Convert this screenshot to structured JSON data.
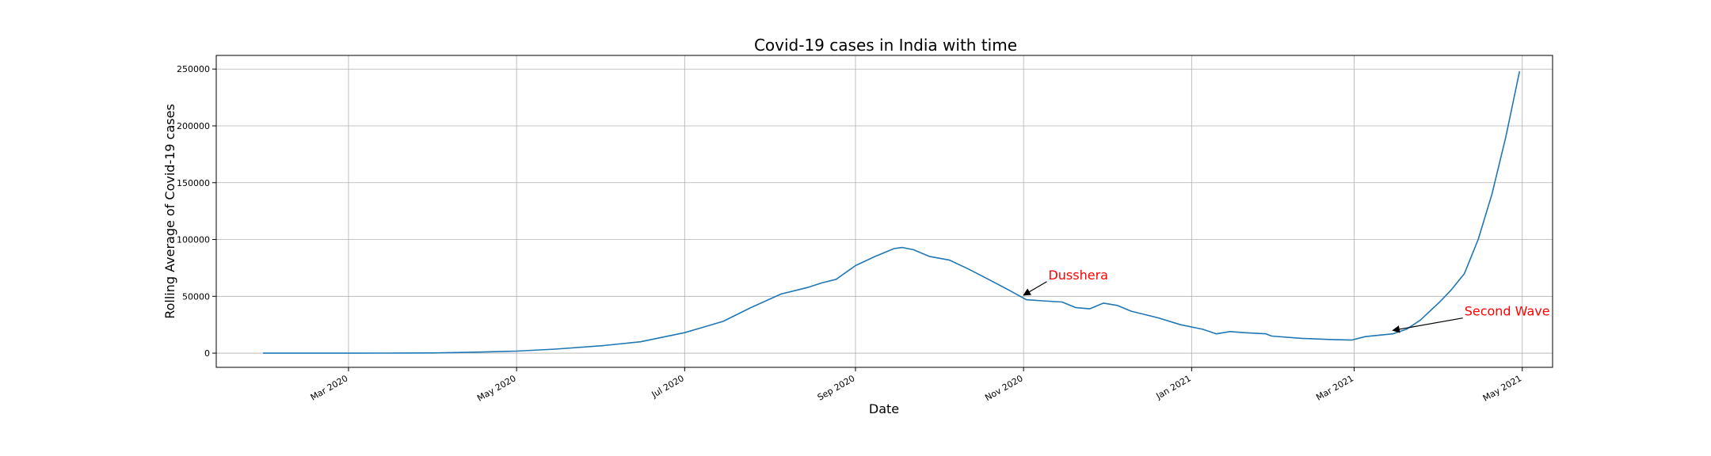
{
  "chart_data": {
    "type": "line",
    "title": "Covid-19 cases in India with time",
    "xlabel": "Date",
    "ylabel": "Rolling Average of Covid-19 cases",
    "x_type": "date",
    "xlim": [
      "2020-01-13",
      "2021-05-12"
    ],
    "ylim": [
      -12500,
      262000
    ],
    "grid": true,
    "x_ticks": [
      {
        "date": "2020-03-01",
        "label": "Mar 2020"
      },
      {
        "date": "2020-05-01",
        "label": "May 2020"
      },
      {
        "date": "2020-07-01",
        "label": "Jul 2020"
      },
      {
        "date": "2020-09-01",
        "label": "Sep 2020"
      },
      {
        "date": "2020-11-01",
        "label": "Nov 2020"
      },
      {
        "date": "2021-01-01",
        "label": "Jan 2021"
      },
      {
        "date": "2021-03-01",
        "label": "Mar 2021"
      },
      {
        "date": "2021-05-01",
        "label": "May 2021"
      }
    ],
    "y_ticks": [
      0,
      50000,
      100000,
      150000,
      200000,
      250000
    ],
    "line_color": "#1f77b4",
    "series": [
      {
        "points": [
          [
            "2020-01-30",
            0
          ],
          [
            "2020-02-15",
            0
          ],
          [
            "2020-03-01",
            0
          ],
          [
            "2020-03-15",
            10
          ],
          [
            "2020-04-01",
            200
          ],
          [
            "2020-04-15",
            800
          ],
          [
            "2020-05-01",
            1800
          ],
          [
            "2020-05-15",
            3500
          ],
          [
            "2020-06-01",
            6500
          ],
          [
            "2020-06-15",
            10000
          ],
          [
            "2020-07-01",
            18000
          ],
          [
            "2020-07-15",
            28000
          ],
          [
            "2020-07-25",
            40000
          ],
          [
            "2020-08-05",
            52000
          ],
          [
            "2020-08-15",
            58000
          ],
          [
            "2020-08-20",
            62000
          ],
          [
            "2020-08-25",
            65000
          ],
          [
            "2020-09-01",
            77000
          ],
          [
            "2020-09-08",
            85000
          ],
          [
            "2020-09-15",
            92000
          ],
          [
            "2020-09-18",
            93000
          ],
          [
            "2020-09-22",
            91000
          ],
          [
            "2020-09-28",
            85000
          ],
          [
            "2020-10-05",
            82000
          ],
          [
            "2020-10-12",
            74000
          ],
          [
            "2020-10-20",
            64000
          ],
          [
            "2020-10-27",
            55000
          ],
          [
            "2020-11-02",
            47000
          ],
          [
            "2020-11-08",
            46000
          ],
          [
            "2020-11-15",
            45000
          ],
          [
            "2020-11-20",
            40000
          ],
          [
            "2020-11-25",
            39000
          ],
          [
            "2020-11-30",
            44000
          ],
          [
            "2020-12-05",
            42000
          ],
          [
            "2020-12-10",
            37000
          ],
          [
            "2020-12-20",
            31000
          ],
          [
            "2020-12-28",
            25000
          ],
          [
            "2021-01-05",
            21000
          ],
          [
            "2021-01-10",
            17000
          ],
          [
            "2021-01-15",
            19000
          ],
          [
            "2021-01-20",
            18000
          ],
          [
            "2021-01-28",
            17000
          ],
          [
            "2021-01-30",
            15000
          ],
          [
            "2021-02-10",
            13000
          ],
          [
            "2021-02-20",
            12000
          ],
          [
            "2021-02-28",
            11500
          ],
          [
            "2021-03-05",
            14500
          ],
          [
            "2021-03-15",
            17000
          ],
          [
            "2021-03-20",
            21000
          ],
          [
            "2021-03-25",
            29000
          ],
          [
            "2021-04-01",
            45000
          ],
          [
            "2021-04-05",
            55000
          ],
          [
            "2021-04-10",
            70000
          ],
          [
            "2021-04-15",
            100000
          ],
          [
            "2021-04-20",
            140000
          ],
          [
            "2021-04-25",
            190000
          ],
          [
            "2021-04-30",
            248000
          ]
        ]
      }
    ],
    "annotations": [
      {
        "text": "Dusshera",
        "color": "#ff0000",
        "text_at": [
          "2020-11-10",
          65000
        ],
        "arrow_to": [
          "2020-11-01",
          51000
        ]
      },
      {
        "text": "Second Wave",
        "color": "#ff0000",
        "text_at": [
          "2021-04-10",
          33000
        ],
        "arrow_to": [
          "2021-03-15",
          20000
        ]
      }
    ]
  }
}
